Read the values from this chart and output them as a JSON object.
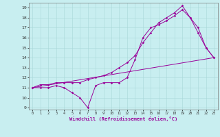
{
  "xlabel": "Windchill (Refroidissement éolien,°C)",
  "xlim": [
    -0.5,
    23.5
  ],
  "ylim": [
    8.8,
    19.5
  ],
  "xticks": [
    0,
    1,
    2,
    3,
    4,
    5,
    6,
    7,
    8,
    9,
    10,
    11,
    12,
    13,
    14,
    15,
    16,
    17,
    18,
    19,
    20,
    21,
    22,
    23
  ],
  "yticks": [
    9,
    10,
    11,
    12,
    13,
    14,
    15,
    16,
    17,
    18,
    19
  ],
  "line_color": "#990099",
  "background_color": "#c8eef0",
  "line1_x": [
    0,
    1,
    2,
    3,
    4,
    5,
    6,
    7,
    8,
    9,
    10,
    11,
    12,
    13,
    14,
    15,
    16,
    17,
    18,
    19,
    20,
    21,
    22,
    23
  ],
  "line1_y": [
    11,
    11,
    11,
    11.2,
    11,
    10.5,
    10,
    9,
    11.2,
    11.5,
    11.5,
    11.5,
    12,
    13.8,
    16,
    17,
    17.3,
    17.7,
    18.2,
    18.8,
    18,
    16.5,
    15,
    14
  ],
  "line2_x": [
    0,
    1,
    2,
    3,
    4,
    5,
    6,
    7,
    8,
    9,
    10,
    11,
    12,
    13,
    14,
    15,
    16,
    17,
    18,
    19,
    20,
    21,
    22,
    23
  ],
  "line2_y": [
    11,
    11.3,
    11.3,
    11.5,
    11.5,
    11.5,
    11.5,
    11.8,
    12,
    12.2,
    12.5,
    13,
    13.5,
    14.2,
    15.5,
    16.5,
    17.5,
    18,
    18.5,
    19.2,
    18,
    17,
    15,
    14
  ],
  "line3_x": [
    0,
    23
  ],
  "line3_y": [
    11,
    14
  ],
  "figwidth": 3.2,
  "figheight": 2.0,
  "dpi": 100
}
